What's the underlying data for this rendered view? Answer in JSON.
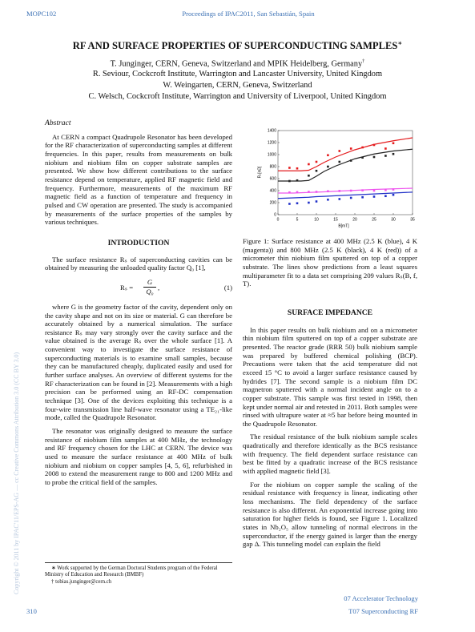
{
  "header": {
    "left": "MOPC102",
    "center": "Proceedings of IPAC2011, San Sebastián, Spain"
  },
  "title": "RF AND SURFACE PROPERTIES OF SUPERCONDUCTING SAMPLES",
  "title_mark": "∗",
  "authors": [
    "T. Junginger, CERN, Geneva, Switzerland and MPIK Heidelberg, Germany",
    "R. Seviour, Cockcroft Institute, Warrington and Lancaster University, United Kingdom",
    "W. Weingarten, CERN, Geneva, Switzerland",
    "C. Welsch, Cockcroft Institute, Warrington and University of Liverpool, United Kingdom"
  ],
  "author_mark": "†",
  "abstract": {
    "heading": "Abstract",
    "text": "At CERN a compact Quadrupole Resonator has been developed for the RF characterization of superconducting samples at different frequencies. In this paper, results from measurements on bulk niobium and niobium film on copper substrate samples are presented. We show how different contributions to the surface resistance depend on temperature, applied RF magnetic field and frequency. Furthermore, measurements of the maximum RF magnetic field as a function of temperature and frequency in pulsed and CW operation are presented. The study is accompanied by measurements of the surface properties of the samples by various techniques."
  },
  "introduction": {
    "heading": "INTRODUCTION",
    "paragraphs": [
      "The surface resistance Rₛ of superconducting cavities can be obtained by measuring the unloaded quality factor Q₀ [1],",
      "where G is the geometry factor of the cavity, dependent only on the cavity shape and not on its size or material. G can therefore be accurately obtained by a numerical simulation. The surface resistance Rₛ may vary strongly over the cavity surface and the value obtained is the average Rₛ over the whole surface [1]. A convenient way to investigate the surface resistance of superconducting materials is to examine small samples, because they can be manufactured cheaply, duplicated easily and used for further surface analyses. An overview of different systems for the RF characterization can be found in [2]. Measurements with a high precision can be performed using an RF-DC compensation technique [3]. One of the devices exploiting this technique is a four-wire transmission line half-wave resonator using a TE₂₁-like mode, called the Quadrupole Resonator.",
      "The resonator was originally designed to measure the surface resistance of niobium film samples at 400 MHz, the technology and RF frequency chosen for the LHC at CERN. The device was used to measure the surface resistance at 400 MHz of bulk niobium and niobium on copper samples [4, 5, 6], refurbished in 2008 to extend the measurement range to 800 and 1200 MHz and to probe the critical field of the samples."
    ],
    "equation": {
      "lhs": "Rₛ =",
      "numerator": "G",
      "denominator": "Q₀",
      "tail": ",",
      "number": "(1)"
    }
  },
  "footnotes": [
    "∗ Work supported by the German Doctoral Students program of the Federal Ministry of Education and Research (BMBF)",
    "† tobias.junginger@cern.ch"
  ],
  "figure_caption": "Figure 1: Surface resistance at 400 MHz (2.5 K (blue), 4 K (magenta)) and 800 MHz (2.5 K (black), 4 K (red)) of a micrometer thin niobium film sputtered on top of a copper substrate. The lines show predictions from a least squares multiparameter fit to a data set comprising 209 values Rₛ(B, f, T).",
  "surface_impedance": {
    "heading": "SURFACE IMPEDANCE",
    "paragraphs": [
      "In this paper results on bulk niobium and on a micrometer thin niobium film sputtered on top of a copper substrate are presented. The reactor grade (RRR 50) bulk niobium sample was prepared by buffered chemical polishing (BCP). Precautions were taken that the acid temperature did not exceed 15 °C to avoid a larger surface resistance caused by hydrides [7]. The second sample is a niobium film DC magnetron sputtered with a normal incident angle on to a copper substrate. This sample was first tested in 1998, then kept under normal air and retested in 2011. Both samples were rinsed with ultrapure water at ≈5 bar before being mounted in the Quadrupole Resonator.",
      "The residual resistance of the bulk niobium sample scales quadratically and therefore identically as the BCS resistance with frequency. The field dependent surface resistance can best be fitted by a quadratic increase of the BCS resistance with applied magnetic field [3].",
      "For the niobium on copper sample the scaling of the residual resistance with frequency is linear, indicating other loss mechanisms. The field dependency of the surface resistance is also different. An exponential increase going into saturation for higher fields is found, see Figure 1. Localized states in Nb₂O₅ allow tunneling of normal electrons in the superconductor, if the energy gained is larger than the energy gap Δ. This tunneling model can explain the field"
    ]
  },
  "watermark": "Copyright © 2011 by IPAC'11/EPS-AG — cc Creative Commons Attribution 3.0 (CC BY 3.0)",
  "footer": {
    "right_top": "07 Accelerator Technology",
    "left": "310",
    "right_bottom": "T07 Superconducting RF"
  },
  "chart_data": {
    "type": "scatter",
    "xlabel": "B[mT]",
    "ylabel": "Rₛ[nΩ]",
    "xlim": [
      0,
      35
    ],
    "xticks": [
      0,
      5,
      10,
      15,
      20,
      25,
      30,
      35
    ],
    "ylim": [
      0,
      1400
    ],
    "yticks": [
      0,
      200,
      400,
      600,
      800,
      1000,
      1200,
      1400
    ],
    "series": [
      {
        "color": "#e41a1c",
        "x": [
          3,
          5,
          8,
          10,
          13,
          16,
          19,
          22,
          25,
          28,
          30
        ],
        "values": [
          780,
          770,
          840,
          880,
          990,
          1060,
          1100,
          1120,
          1160,
          1100,
          1190
        ]
      },
      {
        "color": "#222222",
        "x": [
          3,
          5,
          8,
          10,
          13,
          16,
          19,
          22,
          25,
          28,
          30
        ],
        "values": [
          560,
          570,
          650,
          730,
          800,
          880,
          900,
          950,
          960,
          980,
          1010
        ]
      },
      {
        "color": "#ee55ee",
        "x": [
          3,
          5,
          8,
          10,
          13,
          16,
          19,
          22,
          25,
          28,
          30
        ],
        "values": [
          370,
          375,
          380,
          380,
          390,
          395,
          400,
          405,
          400,
          410,
          420
        ]
      },
      {
        "color": "#2030c8",
        "x": [
          3,
          5,
          8,
          10,
          13,
          16,
          19,
          22,
          25,
          28,
          30
        ],
        "values": [
          180,
          190,
          200,
          220,
          250,
          260,
          280,
          290,
          300,
          310,
          330
        ]
      }
    ],
    "fit_lines": [
      {
        "color": "#e41a1c",
        "x": [
          0,
          2,
          4,
          6,
          8,
          10,
          12,
          15,
          20,
          25,
          30,
          35
        ],
        "values": [
          730,
          730,
          730,
          730,
          740,
          800,
          870,
          960,
          1080,
          1170,
          1230,
          1280
        ]
      },
      {
        "color": "#222222",
        "x": [
          0,
          2,
          4,
          6,
          8,
          10,
          12,
          15,
          20,
          25,
          30,
          35
        ],
        "values": [
          560,
          560,
          560,
          560,
          570,
          640,
          720,
          810,
          930,
          1010,
          1060,
          1090
        ]
      },
      {
        "color": "#ee55ee",
        "x": [
          0,
          2,
          4,
          6,
          8,
          10,
          12,
          15,
          20,
          25,
          30,
          35
        ],
        "values": [
          360,
          360,
          360,
          365,
          370,
          375,
          380,
          390,
          405,
          420,
          430,
          440
        ]
      },
      {
        "color": "#2030c8",
        "x": [
          0,
          2,
          4,
          6,
          8,
          10,
          12,
          15,
          20,
          25,
          30,
          35
        ],
        "values": [
          270,
          275,
          280,
          285,
          290,
          300,
          305,
          315,
          330,
          345,
          360,
          375
        ]
      }
    ]
  }
}
